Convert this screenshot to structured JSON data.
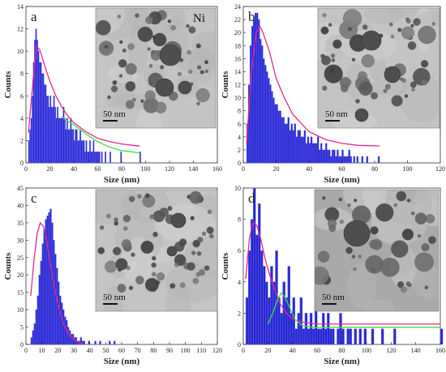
{
  "chart_data": [
    {
      "panel_label": "a",
      "type": "bar",
      "inset_label": "Ni",
      "scale_bar": "50  nm",
      "xlabel": "Size (nm)",
      "ylabel": "Counts",
      "xlim": [
        0,
        160
      ],
      "ylim": [
        0,
        14
      ],
      "xticks": [
        0,
        20,
        40,
        60,
        80,
        100,
        120,
        140,
        160
      ],
      "yticks": [
        0,
        2,
        4,
        6,
        8,
        10,
        12,
        14
      ],
      "bin_width": 1,
      "x_start": 2,
      "counts": [
        2,
        3,
        4,
        6,
        9,
        11,
        12,
        11,
        10,
        9,
        9,
        8,
        8,
        7,
        7,
        6,
        6,
        5,
        6,
        5,
        5,
        6,
        5,
        4,
        5,
        4,
        4,
        4,
        4,
        5,
        4,
        3,
        4,
        3,
        3,
        4,
        3,
        3,
        2,
        3,
        3,
        2,
        2,
        3,
        2,
        2,
        2,
        1,
        2,
        1,
        1,
        2,
        1,
        1,
        2,
        1,
        1,
        1,
        1,
        1,
        0,
        1,
        0,
        0,
        1,
        0,
        0,
        0,
        1,
        0,
        0,
        0,
        0,
        0,
        0,
        0,
        0,
        1,
        0,
        0,
        0,
        0,
        0,
        0,
        0,
        0,
        0,
        0,
        0,
        0,
        0,
        0,
        0,
        1
      ],
      "series": [
        {
          "name": "",
          "color": "#e6268c",
          "x": [
            2,
            6,
            9,
            12,
            16,
            20,
            25,
            30,
            35,
            40,
            50,
            60,
            70,
            80,
            95
          ],
          "y": [
            2.7,
            7.5,
            10.5,
            10.0,
            8.6,
            7.3,
            6.0,
            5.0,
            4.2,
            3.6,
            2.8,
            2.2,
            1.9,
            1.7,
            1.5
          ]
        },
        {
          "name": "",
          "color": "#3fe03f",
          "x": [
            30,
            40,
            50,
            60,
            70,
            80,
            95
          ],
          "y": [
            4.1,
            3.4,
            2.6,
            1.9,
            1.4,
            1.1,
            0.9
          ]
        }
      ]
    },
    {
      "panel_label": "b",
      "type": "bar",
      "inset_label": "",
      "scale_bar": "50  nm",
      "xlabel": "Size (nm)",
      "ylabel": "Counts",
      "xlim": [
        0,
        120
      ],
      "ylim": [
        0,
        24
      ],
      "xticks": [
        0,
        20,
        40,
        60,
        80,
        100,
        120
      ],
      "yticks": [
        0,
        2,
        4,
        6,
        8,
        10,
        12,
        14,
        16,
        18,
        20,
        22,
        24
      ],
      "bin_width": 1,
      "x_start": 2,
      "counts": [
        6,
        12,
        18,
        21,
        22,
        23,
        23,
        22,
        19,
        18,
        16,
        15,
        14,
        13,
        12,
        11,
        10,
        9,
        9,
        8,
        8,
        7,
        7,
        6,
        6,
        7,
        5,
        6,
        5,
        6,
        4,
        5,
        5,
        4,
        4,
        5,
        3,
        4,
        3,
        4,
        3,
        3,
        3,
        4,
        2,
        3,
        2,
        2,
        3,
        2,
        2,
        1,
        2,
        2,
        1,
        2,
        1,
        1,
        2,
        1,
        1,
        1,
        2,
        1,
        0,
        1,
        0,
        1,
        0,
        0,
        1,
        0,
        0,
        1,
        0,
        0,
        0,
        0,
        0,
        0,
        1
      ],
      "series": [
        {
          "name": "",
          "color": "#e6268c",
          "x": [
            2,
            5,
            8,
            10,
            12,
            16,
            20,
            25,
            30,
            40,
            50,
            60,
            70,
            83
          ],
          "y": [
            3,
            14,
            20,
            21,
            20,
            17,
            13,
            10,
            7.5,
            4.8,
            3.6,
            3.0,
            2.7,
            2.6
          ]
        }
      ]
    },
    {
      "panel_label": "c",
      "type": "bar",
      "inset_label": "",
      "scale_bar": "50  nm",
      "xlabel": "Size (nm)",
      "ylabel": "Counts",
      "xlim": [
        0,
        120
      ],
      "ylim": [
        0,
        45
      ],
      "xticks": [
        0,
        10,
        20,
        30,
        40,
        50,
        60,
        70,
        80,
        90,
        100,
        110,
        120
      ],
      "yticks": [
        0,
        5,
        10,
        15,
        20,
        25,
        30,
        35,
        40,
        45
      ],
      "bin_width": 1,
      "x_start": 3,
      "counts": [
        2,
        4,
        6,
        10,
        14,
        20,
        24,
        29,
        33,
        36,
        37,
        38,
        39,
        35,
        30,
        26,
        22,
        18,
        14,
        12,
        10,
        8,
        7,
        5,
        4,
        3,
        3,
        2,
        2,
        1,
        1,
        2,
        1,
        1,
        0,
        0,
        1,
        0,
        0,
        0,
        1,
        0,
        0,
        1,
        0,
        0,
        0,
        0,
        0,
        1,
        0,
        0,
        1
      ],
      "series": [
        {
          "name": "",
          "color": "#e6268c",
          "x": [
            3,
            5,
            7,
            9,
            11,
            13,
            15,
            18,
            21,
            24,
            27,
            30,
            33,
            36
          ],
          "y": [
            14,
            24,
            32,
            35,
            34,
            30,
            24,
            16,
            10,
            5.5,
            3,
            1.5,
            0.6,
            0.2
          ]
        }
      ]
    },
    {
      "panel_label": "d",
      "type": "bar",
      "inset_label": "",
      "scale_bar": "50  nm",
      "xlabel": "Size (nm)",
      "ylabel": "Counts",
      "xlim": [
        0,
        160
      ],
      "ylim": [
        0,
        10
      ],
      "xticks": [
        0,
        20,
        40,
        60,
        80,
        100,
        120,
        140,
        160
      ],
      "yticks": [
        0,
        2,
        4,
        6,
        8,
        10
      ],
      "bin_width": 2,
      "x_start": 2,
      "counts": [
        3,
        6,
        8,
        10,
        7,
        9,
        6,
        5,
        4,
        3,
        5,
        4,
        6,
        3,
        2,
        4,
        3,
        5,
        2,
        3,
        1,
        2,
        3,
        1,
        2,
        1,
        2,
        1,
        3,
        1,
        1,
        2,
        1,
        2,
        1,
        1,
        0,
        1,
        2,
        1,
        0,
        1,
        1,
        0,
        1,
        0,
        1,
        0,
        1,
        0,
        0,
        1,
        0,
        0,
        0,
        1,
        0,
        0,
        0,
        0,
        1,
        0,
        0,
        0,
        0,
        0,
        0,
        0,
        0,
        0,
        0,
        0,
        0,
        0,
        0,
        0,
        0,
        0,
        0,
        1
      ],
      "series": [
        {
          "name": "",
          "color": "#e6268c",
          "x": [
            2,
            5,
            8,
            11,
            14,
            18,
            22,
            26,
            30,
            35,
            40,
            50,
            60,
            80,
            100,
            160
          ],
          "y": [
            4.2,
            6.8,
            7.8,
            7.6,
            6.8,
            5.4,
            4.3,
            3.4,
            2.6,
            2.0,
            1.6,
            1.4,
            1.3,
            1.3,
            1.3,
            1.3
          ]
        },
        {
          "name": "",
          "color": "#3fe03f",
          "x": [
            20,
            24,
            28,
            31,
            34,
            38,
            42,
            48,
            56,
            70,
            100,
            160
          ],
          "y": [
            1.3,
            2.0,
            2.9,
            3.3,
            3.0,
            2.3,
            1.6,
            1.2,
            1.1,
            1.1,
            1.1,
            1.1
          ]
        }
      ]
    }
  ]
}
